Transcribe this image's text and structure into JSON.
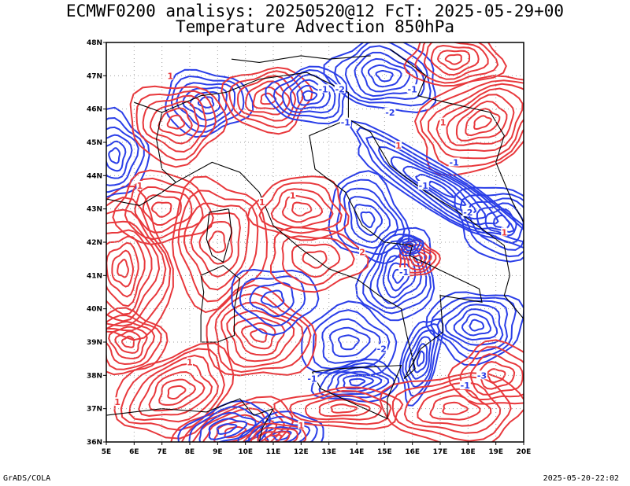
{
  "title_line1": "ECMWF0200 analisys: 20250520@12 FcT: 2025-05-29+00",
  "title_line2": "Temperature Advection 850hPa",
  "footer_left": "GrADS/COLA",
  "footer_right": "2025-05-20-22:02",
  "axes": {
    "x_ticks": [
      "5E",
      "6E",
      "7E",
      "8E",
      "9E",
      "10E",
      "11E",
      "12E",
      "13E",
      "14E",
      "15E",
      "16E",
      "17E",
      "18E",
      "19E",
      "20E"
    ],
    "y_ticks": [
      "48N",
      "47N",
      "46N",
      "45N",
      "44N",
      "43N",
      "42N",
      "41N",
      "40N",
      "39N",
      "38N",
      "37N",
      "36N"
    ],
    "lon_range": [
      5,
      20
    ],
    "lat_range": [
      36,
      48
    ],
    "grid": "dotted"
  },
  "colors": {
    "warm_advection": "#e8383c",
    "cold_advection": "#2a3ee8",
    "coastline": "#000000",
    "grid": "#a0a0a0"
  },
  "contour_labels": {
    "warm": [
      "1",
      "1",
      "1",
      "1",
      "1",
      "1",
      "1",
      "2",
      "1",
      "1",
      "1"
    ],
    "cold": [
      "-1",
      "-2",
      "-1",
      "-1",
      "-2",
      "-1",
      "-1",
      "-2",
      "-1",
      "-3",
      "-1",
      "-2",
      "-1"
    ]
  }
}
